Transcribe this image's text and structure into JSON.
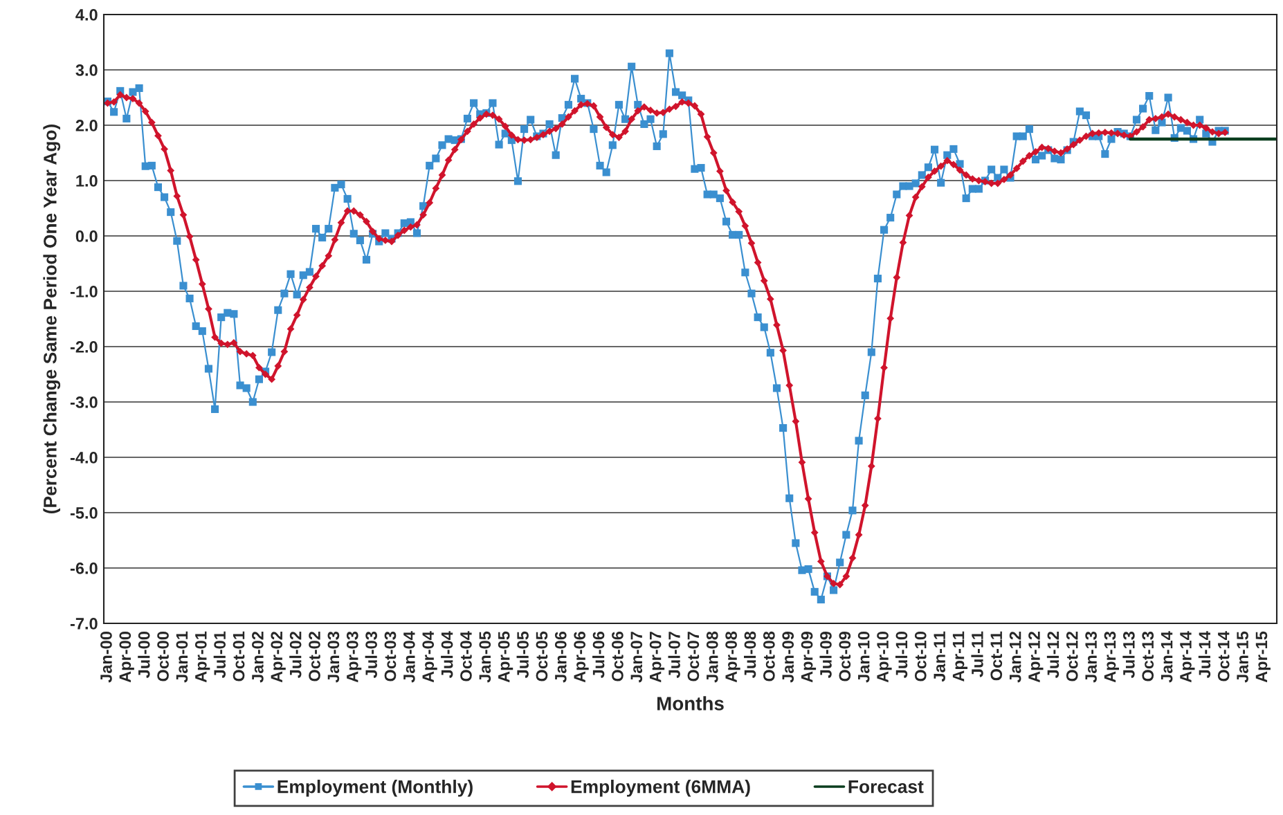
{
  "chart_data": {
    "type": "line",
    "xlabel": "Months",
    "ylabel": "(Percent Change Same Period One Year Ago)",
    "categories": [
      "Jan-00",
      null,
      null,
      "Apr-00",
      null,
      null,
      "Jul-00",
      null,
      null,
      "Oct-00",
      null,
      null,
      "Jan-01",
      null,
      null,
      "Apr-01",
      null,
      null,
      "Jul-01",
      null,
      null,
      "Oct-01",
      null,
      null,
      "Jan-02",
      null,
      null,
      "Apr-02",
      null,
      null,
      "Jul-02",
      null,
      null,
      "Oct-02",
      null,
      null,
      "Jan-03",
      null,
      null,
      "Apr-03",
      null,
      null,
      "Jul-03",
      null,
      null,
      "Oct-03",
      null,
      null,
      "Jan-04",
      null,
      null,
      "Apr-04",
      null,
      null,
      "Jul-04",
      null,
      null,
      "Oct-04",
      null,
      null,
      "Jan-05",
      null,
      null,
      "Apr-05",
      null,
      null,
      "Jul-05",
      null,
      null,
      "Oct-05",
      null,
      null,
      "Jan-06",
      null,
      null,
      "Apr-06",
      null,
      null,
      "Jul-06",
      null,
      null,
      "Oct-06",
      null,
      null,
      "Jan-07",
      null,
      null,
      "Apr-07",
      null,
      null,
      "Jul-07",
      null,
      null,
      "Oct-07",
      null,
      null,
      "Jan-08",
      null,
      null,
      "Apr-08",
      null,
      null,
      "Jul-08",
      null,
      null,
      "Oct-08",
      null,
      null,
      "Jan-09",
      null,
      null,
      "Apr-09",
      null,
      null,
      "Jul-09",
      null,
      null,
      "Oct-09",
      null,
      null,
      "Jan-10",
      null,
      null,
      "Apr-10",
      null,
      null,
      "Jul-10",
      null,
      null,
      "Oct-10",
      null,
      null,
      "Jan-11",
      null,
      null,
      "Apr-11",
      null,
      null,
      "Jul-11",
      null,
      null,
      "Oct-11",
      null,
      null,
      "Jan-12",
      null,
      null,
      "Apr-12",
      null,
      null,
      "Jul-12",
      null,
      null,
      "Oct-12",
      null,
      null,
      "Jan-13",
      null,
      null,
      "Apr-13",
      null,
      null,
      "Jul-13",
      null,
      null,
      "Oct-13",
      null,
      null,
      "Jan-14",
      null,
      null,
      "Apr-14",
      null,
      null,
      "Jul-14",
      null,
      null,
      "Oct-14",
      null,
      null,
      "Jan-15",
      null,
      null,
      "Apr-15",
      null,
      null
    ],
    "series": [
      {
        "name": "Employment (Monthly)",
        "color": "#3a8fd0",
        "marker": "square",
        "values": [
          2.43,
          2.24,
          2.62,
          2.12,
          2.6,
          2.67,
          1.26,
          1.27,
          0.88,
          0.7,
          0.43,
          -0.09,
          -0.9,
          -1.13,
          -1.63,
          -1.72,
          -2.4,
          -3.13,
          -1.47,
          -1.39,
          -1.41,
          -2.7,
          -2.75,
          -3.0,
          -2.59,
          -2.45,
          -2.1,
          -1.34,
          -1.04,
          -0.69,
          -1.06,
          -0.71,
          -0.65,
          0.13,
          -0.03,
          0.13,
          0.87,
          0.93,
          0.67,
          0.04,
          -0.08,
          -0.43,
          0.04,
          -0.1,
          0.05,
          -0.05,
          0.05,
          0.23,
          0.25,
          0.05,
          0.54,
          1.27,
          1.4,
          1.64,
          1.75,
          1.73,
          1.75,
          2.12,
          2.4,
          2.2,
          2.22,
          2.4,
          1.65,
          1.85,
          1.73,
          0.99,
          1.93,
          2.1,
          1.8,
          1.85,
          2.02,
          1.46,
          2.13,
          2.37,
          2.84,
          2.48,
          2.4,
          1.93,
          1.27,
          1.15,
          1.64,
          2.37,
          2.11,
          3.06,
          2.37,
          2.02,
          2.11,
          1.62,
          1.84,
          3.3,
          2.6,
          2.54,
          2.45,
          1.21,
          1.23,
          0.75,
          0.75,
          0.68,
          0.26,
          0.02,
          0.02,
          -0.66,
          -1.04,
          -1.47,
          -1.65,
          -2.11,
          -2.75,
          -3.47,
          -4.74,
          -5.55,
          -6.04,
          -6.02,
          -6.43,
          -6.57,
          -6.15,
          -6.4,
          -5.9,
          -5.4,
          -4.96,
          -3.7,
          -2.88,
          -2.1,
          -0.77,
          0.11,
          0.33,
          0.75,
          0.9,
          0.9,
          0.95,
          1.1,
          1.24,
          1.56,
          0.96,
          1.46,
          1.57,
          1.3,
          0.68,
          0.85,
          0.85,
          1.0,
          1.2,
          1.05,
          1.2,
          1.05,
          1.8,
          1.8,
          1.93,
          1.38,
          1.45,
          1.55,
          1.4,
          1.38,
          1.55,
          1.7,
          2.25,
          2.18,
          1.8,
          1.8,
          1.48,
          1.75,
          1.88,
          1.85,
          1.8,
          2.1,
          2.3,
          2.53,
          1.91,
          2.05,
          2.5,
          1.77,
          1.95,
          1.9,
          1.75,
          2.1,
          1.85,
          1.7,
          1.9,
          1.9,
          null,
          null,
          null,
          null,
          null,
          null,
          null,
          null
        ]
      },
      {
        "name": "Employment (6MMA)",
        "color": "#d0142c",
        "marker": "diamond",
        "values": [
          2.4,
          2.42,
          2.55,
          2.5,
          2.48,
          2.4,
          2.25,
          2.05,
          1.81,
          1.57,
          1.18,
          0.72,
          0.38,
          -0.01,
          -0.43,
          -0.87,
          -1.32,
          -1.83,
          -1.94,
          -1.96,
          -1.93,
          -2.09,
          -2.13,
          -2.16,
          -2.38,
          -2.5,
          -2.59,
          -2.35,
          -2.09,
          -1.68,
          -1.43,
          -1.15,
          -0.93,
          -0.73,
          -0.54,
          -0.36,
          -0.07,
          0.24,
          0.45,
          0.45,
          0.38,
          0.26,
          0.08,
          -0.05,
          -0.08,
          -0.1,
          0.01,
          0.1,
          0.16,
          0.2,
          0.38,
          0.6,
          0.86,
          1.1,
          1.37,
          1.56,
          1.74,
          1.89,
          2.02,
          2.13,
          2.2,
          2.18,
          2.11,
          1.98,
          1.82,
          1.74,
          1.73,
          1.74,
          1.78,
          1.83,
          1.89,
          1.94,
          2.02,
          2.15,
          2.26,
          2.37,
          2.39,
          2.35,
          2.15,
          1.96,
          1.83,
          1.78,
          1.89,
          2.11,
          2.26,
          2.33,
          2.27,
          2.22,
          2.23,
          2.29,
          2.34,
          2.42,
          2.4,
          2.35,
          2.2,
          1.79,
          1.5,
          1.17,
          0.82,
          0.61,
          0.44,
          0.18,
          -0.13,
          -0.48,
          -0.81,
          -1.14,
          -1.61,
          -2.07,
          -2.7,
          -3.35,
          -4.09,
          -4.75,
          -5.36,
          -5.88,
          -6.15,
          -6.28,
          -6.3,
          -6.15,
          -5.82,
          -5.4,
          -4.87,
          -4.16,
          -3.3,
          -2.38,
          -1.49,
          -0.75,
          -0.12,
          0.37,
          0.7,
          0.89,
          1.06,
          1.17,
          1.26,
          1.36,
          1.29,
          1.19,
          1.1,
          1.03,
          1.0,
          0.98,
          0.95,
          0.95,
          1.02,
          1.1,
          1.22,
          1.35,
          1.45,
          1.52,
          1.6,
          1.58,
          1.53,
          1.5,
          1.57,
          1.65,
          1.73,
          1.8,
          1.85,
          1.86,
          1.87,
          1.86,
          1.85,
          1.82,
          1.8,
          1.88,
          1.97,
          2.1,
          2.12,
          2.15,
          2.2,
          2.15,
          2.1,
          2.05,
          2.0,
          2.0,
          1.95,
          1.88,
          1.85,
          1.87,
          null,
          null,
          null,
          null,
          null,
          null,
          null,
          null
        ]
      },
      {
        "name": "Forecast",
        "color": "#0b3d1e",
        "marker": "none",
        "values": [
          null,
          null,
          null,
          null,
          null,
          null,
          null,
          null,
          null,
          null,
          null,
          null,
          null,
          null,
          null,
          null,
          null,
          null,
          null,
          null,
          null,
          null,
          null,
          null,
          null,
          null,
          null,
          null,
          null,
          null,
          null,
          null,
          null,
          null,
          null,
          null,
          null,
          null,
          null,
          null,
          null,
          null,
          null,
          null,
          null,
          null,
          null,
          null,
          null,
          null,
          null,
          null,
          null,
          null,
          null,
          null,
          null,
          null,
          null,
          null,
          null,
          null,
          null,
          null,
          null,
          null,
          null,
          null,
          null,
          null,
          null,
          null,
          null,
          null,
          null,
          null,
          null,
          null,
          null,
          null,
          null,
          null,
          null,
          null,
          null,
          null,
          null,
          null,
          null,
          null,
          null,
          null,
          null,
          null,
          null,
          null,
          null,
          null,
          null,
          null,
          null,
          null,
          null,
          null,
          null,
          null,
          null,
          null,
          null,
          null,
          null,
          null,
          null,
          null,
          null,
          null,
          null,
          null,
          null,
          null,
          null,
          null,
          null,
          null,
          null,
          null,
          null,
          null,
          null,
          null,
          null,
          null,
          null,
          null,
          null,
          null,
          null,
          null,
          null,
          null,
          null,
          null,
          null,
          null,
          null,
          null,
          null,
          null,
          null,
          null,
          null,
          null,
          null,
          null,
          null,
          null,
          null,
          null,
          null,
          null,
          null,
          null,
          1.75,
          1.75,
          1.75,
          1.75,
          1.75,
          1.75,
          1.75,
          1.75,
          1.75,
          1.75,
          1.75,
          1.75,
          1.75,
          1.75,
          1.75,
          1.75,
          1.75,
          1.75,
          1.75,
          1.75,
          1.75,
          1.75,
          1.75,
          1.75
        ]
      }
    ],
    "ylim": [
      -7.0,
      4.0
    ],
    "yticks": [
      {
        "value": 4,
        "label": "4.0"
      },
      {
        "value": 3,
        "label": "3.0"
      },
      {
        "value": 2,
        "label": "2.0"
      },
      {
        "value": 1,
        "label": "1.0"
      },
      {
        "value": 0,
        "label": "0.0"
      },
      {
        "value": -1,
        "label": "-1.0"
      },
      {
        "value": -2,
        "label": "-2.0"
      },
      {
        "value": -3,
        "label": "-3.0"
      },
      {
        "value": -4,
        "label": "-4.0"
      },
      {
        "value": -5,
        "label": "-5.0"
      },
      {
        "value": -6,
        "label": "-6.0"
      },
      {
        "value": -7,
        "label": "-7.0"
      }
    ],
    "grid": "y",
    "legend": "bottom",
    "line_style": "solid"
  }
}
